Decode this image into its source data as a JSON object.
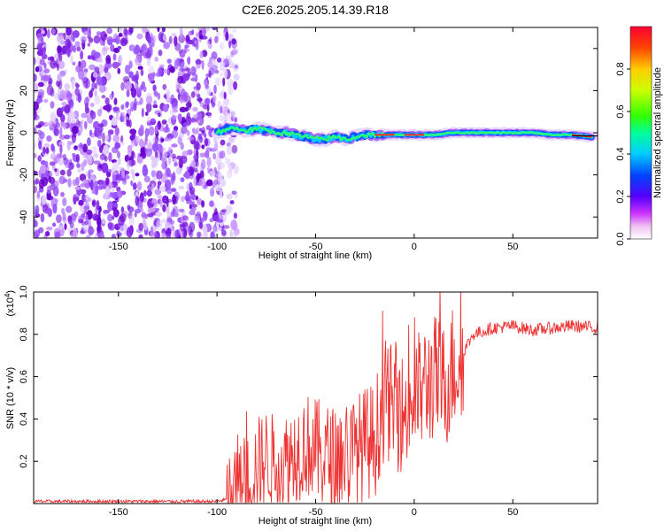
{
  "title": "C2E6.2025.205.14.39.R18",
  "colorbar": {
    "label": "Normalized spectral amplitude",
    "ticks": [
      "0.0",
      "0.2",
      "0.4",
      "0.6",
      "0.8"
    ],
    "tick_values": [
      0.0,
      0.2,
      0.4,
      0.6,
      0.8
    ],
    "range": [
      0,
      1
    ]
  },
  "chart_data": [
    {
      "type": "heatmap",
      "xlabel": "Height of straight line (km)",
      "ylabel": "Frequency (Hz)",
      "xlim": [
        -193,
        93
      ],
      "ylim": [
        -50,
        50
      ],
      "xticks": [
        -150,
        -100,
        -50,
        0,
        50
      ],
      "xtick_labels": [
        "-150",
        "-100",
        "-50",
        "0",
        "50"
      ],
      "yticks": [
        -40,
        -20,
        0,
        20,
        40
      ],
      "ytick_labels": [
        "-40",
        "-20",
        "0",
        "20",
        "40"
      ],
      "noise_region_x": [
        -193,
        -90
      ],
      "signal_ridge": {
        "x": [
          -100,
          -95,
          -90,
          -85,
          -80,
          -75,
          -70,
          -65,
          -60,
          -55,
          -50,
          -45,
          -40,
          -35,
          -30,
          -25,
          -20,
          -15,
          -10,
          -5,
          0,
          5,
          10,
          20,
          30,
          40,
          50,
          60,
          70,
          80,
          90
        ],
        "y": [
          0,
          2,
          2,
          1,
          2,
          1,
          0,
          0,
          -1,
          -2,
          -3,
          -3,
          -2,
          -3,
          -2,
          -1,
          -1,
          -1,
          -1,
          -1,
          -1,
          -1,
          -1,
          0,
          0,
          0,
          0,
          0,
          -1,
          -1,
          -2
        ]
      }
    },
    {
      "type": "line",
      "xlabel": "Height of straight line (km)",
      "ylabel": "SNR (10 * v/v)",
      "y_multiplier": "(x10",
      "y_multiplier_exp": "4",
      "y_multiplier_close": ")",
      "xlim": [
        -193,
        93
      ],
      "ylim": [
        0,
        1.0
      ],
      "xticks": [
        -150,
        -100,
        -50,
        0,
        50
      ],
      "xtick_labels": [
        "-150",
        "-100",
        "-50",
        "0",
        "50"
      ],
      "yticks": [
        0.2,
        0.4,
        0.6,
        0.8,
        1.0
      ],
      "ytick_labels": [
        "0.2",
        "0.4",
        "0.6",
        "0.8",
        "1.0"
      ],
      "series": [
        {
          "color": "#ee3333",
          "x": [
            -193,
            -170,
            -150,
            -130,
            -110,
            -100,
            -95,
            -90,
            -85,
            -80,
            -75,
            -70,
            -65,
            -60,
            -55,
            -50,
            -45,
            -40,
            -35,
            -30,
            -25,
            -20,
            -15,
            -10,
            -5,
            0,
            5,
            10,
            15,
            20,
            25,
            30,
            40,
            50,
            60,
            70,
            80,
            93
          ],
          "y": [
            0.01,
            0.01,
            0.01,
            0.01,
            0.01,
            0.01,
            0.02,
            0.05,
            0.1,
            0.18,
            0.22,
            0.18,
            0.2,
            0.25,
            0.28,
            0.25,
            0.22,
            0.2,
            0.22,
            0.24,
            0.28,
            0.3,
            0.5,
            0.45,
            0.42,
            0.5,
            0.55,
            0.6,
            0.55,
            0.65,
            0.72,
            0.8,
            0.83,
            0.84,
            0.82,
            0.83,
            0.84,
            0.83
          ]
        }
      ]
    }
  ]
}
